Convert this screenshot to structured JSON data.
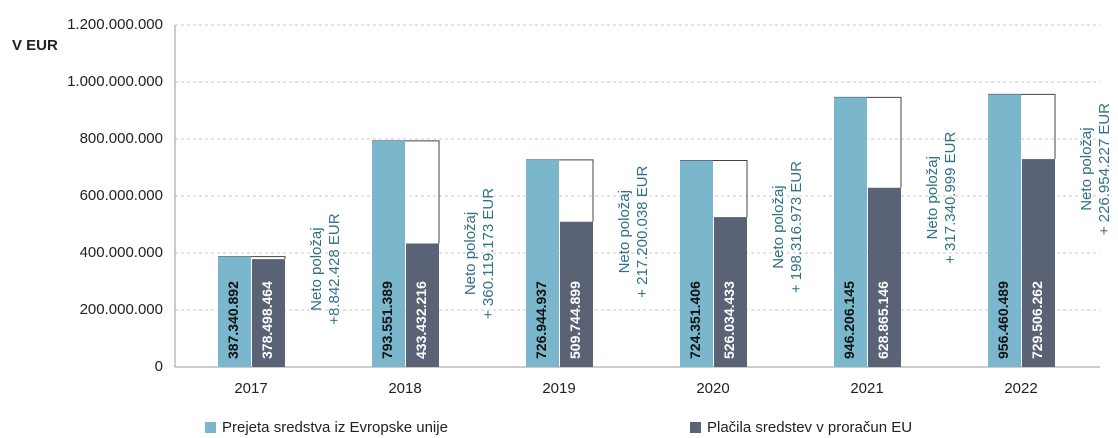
{
  "chart_data": {
    "type": "bar",
    "y_label": "V EUR",
    "categories": [
      "2017",
      "2018",
      "2019",
      "2020",
      "2021",
      "2022"
    ],
    "series": [
      {
        "name": "Prejeta sredstva iz Evropske unije",
        "color": "#7ab6cc",
        "values": [
          387340892,
          793551389,
          726944937,
          724351406,
          946206145,
          956460489
        ],
        "value_labels": [
          "387.340.892",
          "793.551.389",
          "726.944.937",
          "724.351.406",
          "946.206.145",
          "956.460.489"
        ]
      },
      {
        "name": "Plačila sredstev v proračun EU",
        "color": "#5a6376",
        "values": [
          378498464,
          433432216,
          509744899,
          526034433,
          628865146,
          729506262
        ],
        "value_labels": [
          "378.498.464",
          "433.432.216",
          "509.744.899",
          "526.034.433",
          "628.865.146",
          "729.506.262"
        ]
      }
    ],
    "annotations": [
      [
        "Neto položaj",
        "+8.842.428 EUR"
      ],
      [
        "Neto položaj",
        "+ 360.119.173 EUR"
      ],
      [
        "Neto položaj",
        "+ 217.200.038 EUR"
      ],
      [
        "Neto položaj",
        "+ 198.316.973 EUR"
      ],
      [
        "Neto položaj",
        "+ 317.340.999 EUR"
      ],
      [
        "Neto položaj",
        "+ 226.954.227 EUR"
      ]
    ],
    "ylim": [
      0,
      1200000000
    ],
    "yticks": [
      0,
      {
        "value": 200000000,
        "label": "200.000.000"
      },
      {
        "value": 400000000,
        "label": "400.000.000"
      },
      {
        "value": 600000000,
        "label": "600.000.000"
      },
      {
        "value": 800000000,
        "label": "800.000.000"
      },
      {
        "value": 1000000000,
        "label": "1.000.000.000"
      },
      {
        "value": 1200000000,
        "label": "1.200.000.000"
      }
    ],
    "grid": true
  }
}
